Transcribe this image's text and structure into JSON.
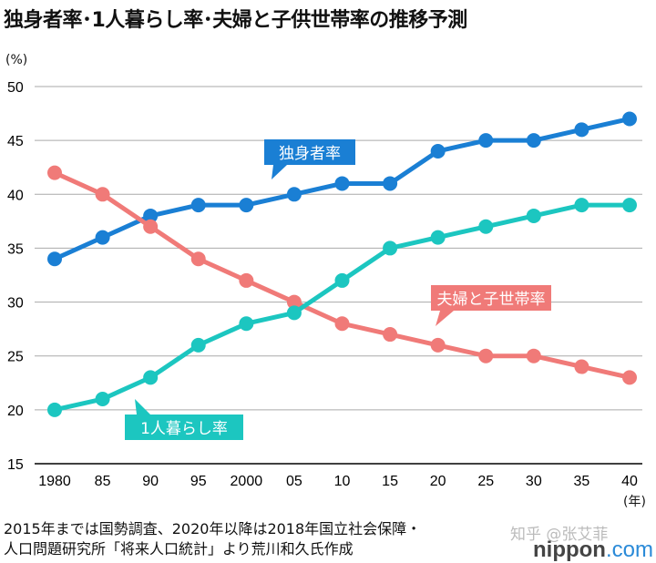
{
  "chart_data": {
    "type": "line",
    "title": "独身者率･1人暮らし率･夫婦と子供世帯率の推移予測",
    "ylabel": "(%)",
    "xlabel": "(年)",
    "ylim": [
      15,
      50
    ],
    "yticks": [
      15,
      20,
      25,
      30,
      35,
      40,
      45,
      50
    ],
    "categories": [
      "1980",
      "85",
      "90",
      "95",
      "2000",
      "05",
      "10",
      "15",
      "20",
      "25",
      "30",
      "35",
      "40"
    ],
    "grid": true,
    "series": [
      {
        "name": "独身者率",
        "color": "#1a7fd4",
        "values": [
          34,
          36,
          38,
          39,
          39,
          40,
          41,
          41,
          44,
          45,
          45,
          46,
          47
        ]
      },
      {
        "name": "夫婦と子世帯率",
        "color": "#f07a78",
        "values": [
          42,
          40,
          37,
          34,
          32,
          30,
          28,
          27,
          26,
          25,
          25,
          24,
          23
        ]
      },
      {
        "name": "1人暮らし率",
        "color": "#1cc6c0",
        "values": [
          20,
          21,
          23,
          26,
          28,
          29,
          32,
          35,
          36,
          37,
          38,
          39,
          39
        ]
      }
    ]
  },
  "note_line1": "2015年までは国勢調査、2020年以降は2018年国立社会保障・",
  "note_line2": "人口問題研究所「将来人口統計」より荒川和久氏作成",
  "watermark": "知乎 @张艾菲",
  "logo": "nippon.com"
}
